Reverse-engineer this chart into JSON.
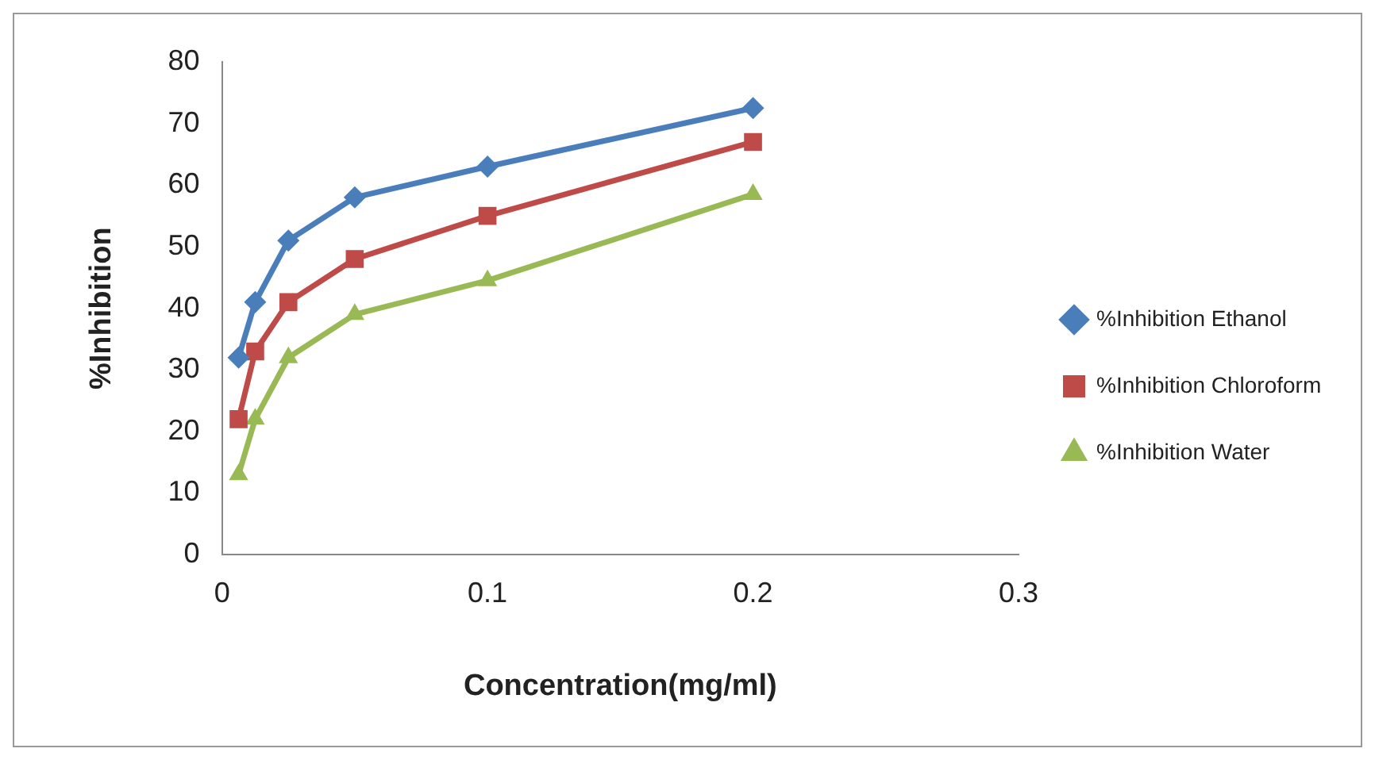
{
  "chart_data": {
    "type": "line",
    "xlabel": "Concentration(mg/ml)",
    "ylabel": "%Inhibition",
    "xlim": [
      0,
      0.3
    ],
    "xticks": [
      0,
      0.1,
      0.2,
      0.3
    ],
    "ylim": [
      0,
      80
    ],
    "yticks": [
      0,
      10,
      20,
      30,
      40,
      50,
      60,
      70,
      80
    ],
    "grid": false,
    "legend": "right",
    "line_style": "solid",
    "x": [
      0.00625,
      0.0125,
      0.025,
      0.05,
      0.1,
      0.2
    ],
    "series": [
      {
        "name": "%Inhibition Ethanol",
        "color": "#4a7ebb",
        "marker": "diamond",
        "values": [
          32,
          41,
          51,
          58,
          63,
          72.5
        ]
      },
      {
        "name": "%Inhibition Chloroform",
        "color": "#be4b48",
        "marker": "square",
        "values": [
          22,
          33,
          41,
          48,
          55,
          67
        ]
      },
      {
        "name": "%Inhibition Water",
        "color": "#98b954",
        "marker": "triangle",
        "values": [
          13,
          22,
          32,
          39,
          44.5,
          58.5
        ]
      }
    ]
  }
}
